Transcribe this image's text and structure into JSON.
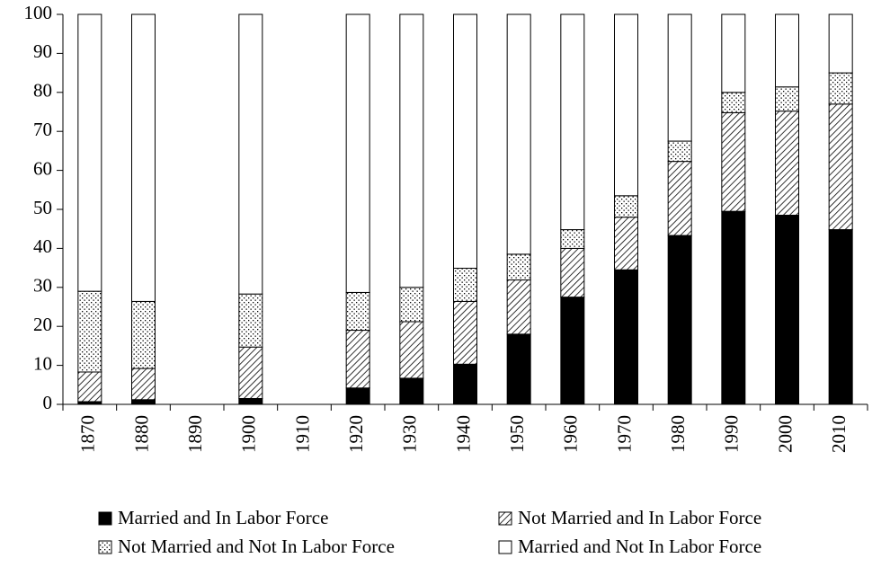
{
  "chart_data": {
    "type": "stacked-bar",
    "categories": [
      "1870",
      "1880",
      "1890",
      "1900",
      "1910",
      "1920",
      "1930",
      "1940",
      "1950",
      "1960",
      "1970",
      "1980",
      "1990",
      "2000",
      "2010"
    ],
    "series": [
      {
        "name": "Married and In Labor Force",
        "color": "#000000",
        "pattern": "solid",
        "values": [
          0.7,
          1.2,
          null,
          1.5,
          null,
          4.2,
          6.7,
          10.3,
          18,
          27.5,
          34.5,
          43.3,
          49.5,
          48.5,
          44.8
        ]
      },
      {
        "name": "Not Married and In Labor Force",
        "color": "#000000",
        "pattern": "hatch",
        "values": [
          7.6,
          8.0,
          null,
          13.2,
          null,
          14.8,
          14.5,
          16.1,
          13.9,
          12.5,
          13.5,
          19,
          25.3,
          26.7,
          32.2
        ]
      },
      {
        "name": "Not Married and Not In Labor Force",
        "color": "#000000",
        "pattern": "dots",
        "values": [
          20.7,
          17.2,
          null,
          13.6,
          null,
          9.7,
          8.8,
          8.5,
          6.6,
          4.8,
          5.5,
          5.2,
          5.2,
          6.2,
          8
        ]
      },
      {
        "name": "Married and Not In Labor Force",
        "color": "#000000",
        "pattern": "none",
        "values": [
          71,
          73.6,
          null,
          71.7,
          null,
          71.3,
          70,
          65.1,
          61.5,
          55.2,
          46.5,
          32.5,
          20,
          18.6,
          15
        ]
      }
    ],
    "ylim": [
      0,
      100
    ],
    "yticks": [
      0,
      10,
      20,
      30,
      40,
      50,
      60,
      70,
      80,
      90,
      100
    ]
  }
}
